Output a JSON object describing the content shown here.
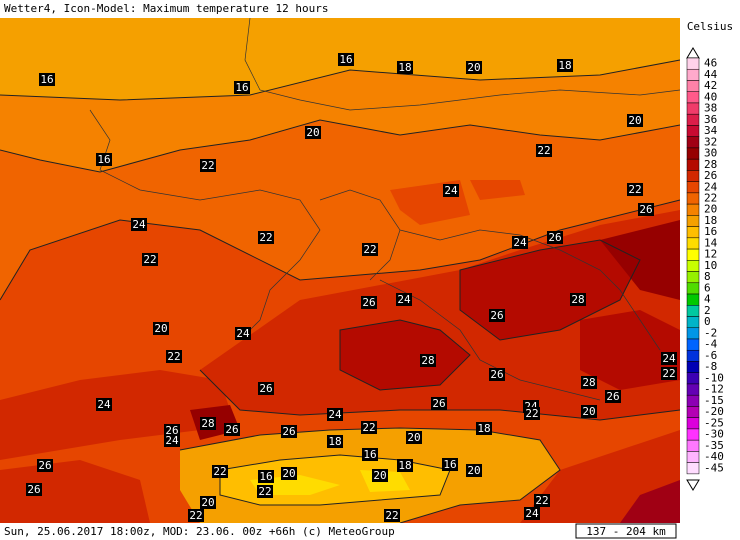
{
  "header": {
    "title": "Wetter4, Icon-Model: Maximum temperature 12 hours"
  },
  "legend": {
    "unit": "Celsius",
    "items": [
      {
        "label": 46,
        "color": "#ffd2ea"
      },
      {
        "label": 44,
        "color": "#ffaacc"
      },
      {
        "label": 42,
        "color": "#ff82a8"
      },
      {
        "label": 40,
        "color": "#ff5a8a"
      },
      {
        "label": 38,
        "color": "#f03c6a"
      },
      {
        "label": 36,
        "color": "#dc1e4a"
      },
      {
        "label": 34,
        "color": "#c80a32"
      },
      {
        "label": 32,
        "color": "#a00014"
      },
      {
        "label": 30,
        "color": "#960000"
      },
      {
        "label": 28,
        "color": "#b40a00"
      },
      {
        "label": 26,
        "color": "#d22800"
      },
      {
        "label": 24,
        "color": "#e64600"
      },
      {
        "label": 22,
        "color": "#f06400"
      },
      {
        "label": 20,
        "color": "#f58200"
      },
      {
        "label": 18,
        "color": "#f5a000"
      },
      {
        "label": 16,
        "color": "#ffbe00"
      },
      {
        "label": 14,
        "color": "#ffdc00"
      },
      {
        "label": 12,
        "color": "#ffff00"
      },
      {
        "label": 10,
        "color": "#c8ff00"
      },
      {
        "label": 8,
        "color": "#96f000"
      },
      {
        "label": 6,
        "color": "#50dc00"
      },
      {
        "label": 4,
        "color": "#00c800"
      },
      {
        "label": 2,
        "color": "#00c8a0"
      },
      {
        "label": 0,
        "color": "#00b4c8"
      },
      {
        "label": -2,
        "color": "#0096e6"
      },
      {
        "label": -4,
        "color": "#0064ff"
      },
      {
        "label": -6,
        "color": "#0032dc"
      },
      {
        "label": -8,
        "color": "#0000b4"
      },
      {
        "label": -10,
        "color": "#3c00b4"
      },
      {
        "label": -12,
        "color": "#6400b4"
      },
      {
        "label": -15,
        "color": "#8c00b4"
      },
      {
        "label": -20,
        "color": "#b400b4"
      },
      {
        "label": -25,
        "color": "#dc00dc"
      },
      {
        "label": -30,
        "color": "#ff32ff"
      },
      {
        "label": -35,
        "color": "#ff78ff"
      },
      {
        "label": -40,
        "color": "#ffb4ff"
      },
      {
        "label": -45,
        "color": "#ffdcff"
      }
    ]
  },
  "contour_labels": [
    16,
    16,
    18,
    20,
    18,
    16,
    20,
    20,
    16,
    22,
    22,
    24,
    22,
    26,
    24,
    22,
    22,
    24,
    26,
    22,
    26,
    24,
    28,
    26,
    20,
    24,
    22,
    28,
    26,
    28,
    26,
    24,
    22,
    26,
    24,
    26,
    24,
    20,
    24,
    22,
    28,
    26,
    26,
    26,
    22,
    24,
    18,
    18,
    20,
    16,
    18,
    16,
    26,
    22,
    16,
    20,
    20,
    20,
    22,
    26,
    20,
    22,
    22,
    24,
    22
  ],
  "footer": {
    "text": "Sun, 25.06.2017 18:00z, MOD: 23.06. 00z +66h (c) MeteoGroup",
    "scale": "137 - 204 km"
  }
}
